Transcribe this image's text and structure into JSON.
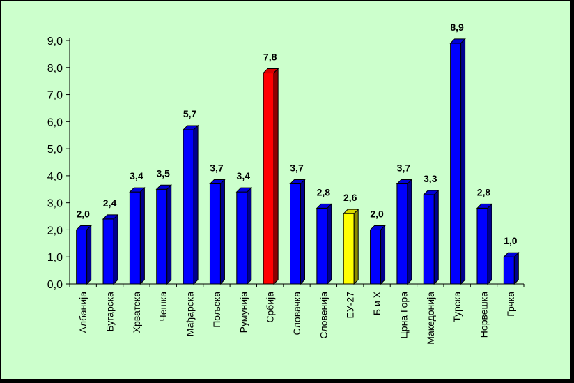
{
  "chart_data": {
    "type": "bar",
    "title": "",
    "xlabel": "",
    "ylabel": "",
    "ylim": [
      0,
      9
    ],
    "y_ticks": [
      "0,0",
      "1,0",
      "2,0",
      "3,0",
      "4,0",
      "5,0",
      "6,0",
      "7,0",
      "8,0",
      "9,0"
    ],
    "categories": [
      "Албанија",
      "Бугарска",
      "Хрватска",
      "Чешка",
      "Мађарска",
      "Пољска",
      "Румунија",
      "Србија",
      "Словачка",
      "Словенија",
      "ЕУ-27",
      "Б и Х",
      "Црна Гора",
      "Македонија",
      "Турска",
      "Норвешка",
      "Грчка"
    ],
    "values": [
      2.0,
      2.4,
      3.4,
      3.5,
      5.7,
      3.7,
      3.4,
      7.8,
      3.7,
      2.8,
      2.6,
      2.0,
      3.7,
      3.3,
      8.9,
      2.8,
      1.0
    ],
    "value_labels": [
      "2,0",
      "2,4",
      "3,4",
      "3,5",
      "5,7",
      "3,7",
      "3,4",
      "7,8",
      "3,7",
      "2,8",
      "2,6",
      "2,0",
      "3,7",
      "3,3",
      "8,9",
      "2,8",
      "1,0"
    ],
    "colors": {
      "background": "#ccffcc",
      "default_bar": "#0000ff",
      "highlight_Србија": "#ff0000",
      "highlight_ЕУ-27": "#ffff00"
    },
    "bar_colors": [
      "#0000ff",
      "#0000ff",
      "#0000ff",
      "#0000ff",
      "#0000ff",
      "#0000ff",
      "#0000ff",
      "#ff0000",
      "#0000ff",
      "#0000ff",
      "#ffff00",
      "#0000ff",
      "#0000ff",
      "#0000ff",
      "#0000ff",
      "#0000ff",
      "#0000ff"
    ],
    "grid": false,
    "legend": "none",
    "bar_style": "3d"
  }
}
